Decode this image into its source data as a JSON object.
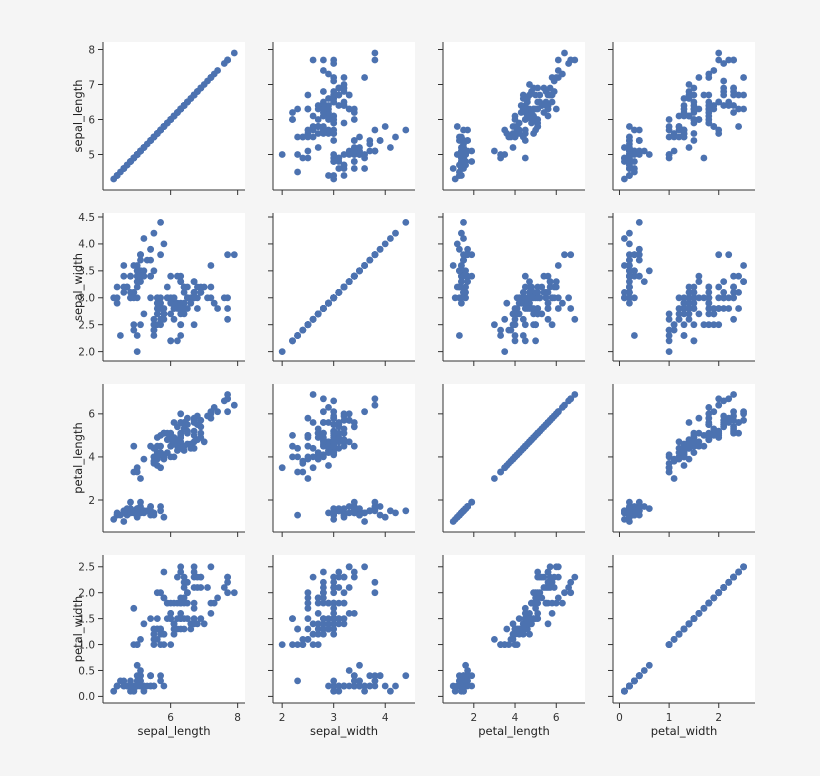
{
  "chart_data": {
    "type": "scatter",
    "variables": [
      "sepal_length",
      "sepal_width",
      "petal_length",
      "petal_width"
    ],
    "grid": false,
    "diagonal": "scatter",
    "colors": {
      "points": "#4c72b0",
      "axis": "#333333",
      "panel_bg": "#ffffff",
      "page_bg": "#f5f5f5"
    },
    "axes": {
      "sepal_length": {
        "label": "sepal_length",
        "range": [
          4.1,
          8.1
        ],
        "ticks": [
          5,
          6,
          7,
          8
        ],
        "x_ticks": [
          6,
          8
        ],
        "y_ticks": [
          5,
          6,
          7,
          8
        ]
      },
      "sepal_width": {
        "label": "sepal_width",
        "range": [
          1.9,
          4.5
        ],
        "ticks": [
          2.0,
          2.5,
          3.0,
          3.5,
          4.0,
          4.5
        ],
        "x_ticks": [
          2,
          3,
          4
        ],
        "y_ticks": [
          2.0,
          2.5,
          3.0,
          3.5,
          4.0,
          4.5
        ]
      },
      "petal_length": {
        "label": "petal_length",
        "range": [
          0.7,
          7.2
        ],
        "ticks": [
          2,
          4,
          6
        ],
        "x_ticks": [
          2,
          4,
          6
        ],
        "y_ticks": [
          2,
          4,
          6
        ]
      },
      "petal_width": {
        "label": "petal_width",
        "range": [
          -0.05,
          2.65
        ],
        "ticks": [
          0.0,
          0.5,
          1.0,
          1.5,
          2.0,
          2.5
        ],
        "x_ticks": [
          0,
          1,
          2
        ],
        "y_ticks": [
          0.0,
          0.5,
          1.0,
          1.5,
          2.0,
          2.5
        ]
      }
    },
    "columns": [
      "sepal_length",
      "sepal_width",
      "petal_length",
      "petal_width"
    ],
    "rows": [
      [
        5.1,
        3.5,
        1.4,
        0.2
      ],
      [
        4.9,
        3.0,
        1.4,
        0.2
      ],
      [
        4.7,
        3.2,
        1.3,
        0.2
      ],
      [
        4.6,
        3.1,
        1.5,
        0.2
      ],
      [
        5.0,
        3.6,
        1.4,
        0.2
      ],
      [
        5.4,
        3.9,
        1.7,
        0.4
      ],
      [
        4.6,
        3.4,
        1.4,
        0.3
      ],
      [
        5.0,
        3.4,
        1.5,
        0.2
      ],
      [
        4.4,
        2.9,
        1.4,
        0.2
      ],
      [
        4.9,
        3.1,
        1.5,
        0.1
      ],
      [
        5.4,
        3.7,
        1.5,
        0.2
      ],
      [
        4.8,
        3.4,
        1.6,
        0.2
      ],
      [
        4.8,
        3.0,
        1.4,
        0.1
      ],
      [
        4.3,
        3.0,
        1.1,
        0.1
      ],
      [
        5.8,
        4.0,
        1.2,
        0.2
      ],
      [
        5.7,
        4.4,
        1.5,
        0.4
      ],
      [
        5.4,
        3.9,
        1.3,
        0.4
      ],
      [
        5.1,
        3.5,
        1.4,
        0.3
      ],
      [
        5.7,
        3.8,
        1.7,
        0.3
      ],
      [
        5.1,
        3.8,
        1.5,
        0.3
      ],
      [
        5.4,
        3.4,
        1.7,
        0.2
      ],
      [
        5.1,
        3.7,
        1.5,
        0.4
      ],
      [
        4.6,
        3.6,
        1.0,
        0.2
      ],
      [
        5.1,
        3.3,
        1.7,
        0.5
      ],
      [
        4.8,
        3.4,
        1.9,
        0.2
      ],
      [
        5.0,
        3.0,
        1.6,
        0.2
      ],
      [
        5.0,
        3.4,
        1.6,
        0.4
      ],
      [
        5.2,
        3.5,
        1.5,
        0.2
      ],
      [
        5.2,
        3.4,
        1.4,
        0.2
      ],
      [
        4.7,
        3.2,
        1.6,
        0.2
      ],
      [
        4.8,
        3.1,
        1.6,
        0.2
      ],
      [
        5.4,
        3.4,
        1.5,
        0.4
      ],
      [
        5.2,
        4.1,
        1.5,
        0.1
      ],
      [
        5.5,
        4.2,
        1.4,
        0.2
      ],
      [
        4.9,
        3.1,
        1.5,
        0.2
      ],
      [
        5.0,
        3.2,
        1.2,
        0.2
      ],
      [
        5.5,
        3.5,
        1.3,
        0.2
      ],
      [
        4.9,
        3.6,
        1.4,
        0.1
      ],
      [
        4.4,
        3.0,
        1.3,
        0.2
      ],
      [
        5.1,
        3.4,
        1.5,
        0.2
      ],
      [
        5.0,
        3.5,
        1.3,
        0.3
      ],
      [
        4.5,
        2.3,
        1.3,
        0.3
      ],
      [
        4.4,
        3.2,
        1.3,
        0.2
      ],
      [
        5.0,
        3.5,
        1.6,
        0.6
      ],
      [
        5.1,
        3.8,
        1.9,
        0.4
      ],
      [
        4.8,
        3.0,
        1.4,
        0.3
      ],
      [
        5.1,
        3.8,
        1.6,
        0.2
      ],
      [
        4.6,
        3.2,
        1.4,
        0.2
      ],
      [
        5.3,
        3.7,
        1.5,
        0.2
      ],
      [
        5.0,
        3.3,
        1.4,
        0.2
      ],
      [
        7.0,
        3.2,
        4.7,
        1.4
      ],
      [
        6.4,
        3.2,
        4.5,
        1.5
      ],
      [
        6.9,
        3.1,
        4.9,
        1.5
      ],
      [
        5.5,
        2.3,
        4.0,
        1.3
      ],
      [
        6.5,
        2.8,
        4.6,
        1.5
      ],
      [
        5.7,
        2.8,
        4.5,
        1.3
      ],
      [
        6.3,
        3.3,
        4.7,
        1.6
      ],
      [
        4.9,
        2.4,
        3.3,
        1.0
      ],
      [
        6.6,
        2.9,
        4.6,
        1.3
      ],
      [
        5.2,
        2.7,
        3.9,
        1.4
      ],
      [
        5.0,
        2.0,
        3.5,
        1.0
      ],
      [
        5.9,
        3.0,
        4.2,
        1.5
      ],
      [
        6.0,
        2.2,
        4.0,
        1.0
      ],
      [
        6.1,
        2.9,
        4.7,
        1.4
      ],
      [
        5.6,
        2.9,
        3.6,
        1.3
      ],
      [
        6.7,
        3.1,
        4.4,
        1.4
      ],
      [
        5.6,
        3.0,
        4.5,
        1.5
      ],
      [
        5.8,
        2.7,
        4.1,
        1.0
      ],
      [
        6.2,
        2.2,
        4.5,
        1.5
      ],
      [
        5.6,
        2.5,
        3.9,
        1.1
      ],
      [
        5.9,
        3.2,
        4.8,
        1.8
      ],
      [
        6.1,
        2.8,
        4.0,
        1.3
      ],
      [
        6.3,
        2.5,
        4.9,
        1.5
      ],
      [
        6.1,
        2.8,
        4.7,
        1.2
      ],
      [
        6.4,
        2.9,
        4.3,
        1.3
      ],
      [
        6.6,
        3.0,
        4.4,
        1.4
      ],
      [
        6.8,
        2.8,
        4.8,
        1.4
      ],
      [
        6.7,
        3.0,
        5.0,
        1.7
      ],
      [
        6.0,
        2.9,
        4.5,
        1.5
      ],
      [
        5.7,
        2.6,
        3.5,
        1.0
      ],
      [
        5.5,
        2.4,
        3.8,
        1.1
      ],
      [
        5.5,
        2.4,
        3.7,
        1.0
      ],
      [
        5.8,
        2.7,
        3.9,
        1.2
      ],
      [
        6.0,
        2.7,
        5.1,
        1.6
      ],
      [
        5.4,
        3.0,
        4.5,
        1.5
      ],
      [
        6.0,
        3.4,
        4.5,
        1.6
      ],
      [
        6.7,
        3.1,
        4.7,
        1.5
      ],
      [
        6.3,
        2.3,
        4.4,
        1.3
      ],
      [
        5.6,
        3.0,
        4.1,
        1.3
      ],
      [
        5.5,
        2.5,
        4.0,
        1.3
      ],
      [
        5.5,
        2.6,
        4.4,
        1.2
      ],
      [
        6.1,
        3.0,
        4.6,
        1.4
      ],
      [
        5.8,
        2.6,
        4.0,
        1.2
      ],
      [
        5.0,
        2.3,
        3.3,
        1.0
      ],
      [
        5.6,
        2.7,
        4.2,
        1.3
      ],
      [
        5.7,
        3.0,
        4.2,
        1.2
      ],
      [
        5.7,
        2.9,
        4.2,
        1.3
      ],
      [
        6.2,
        2.9,
        4.3,
        1.3
      ],
      [
        5.1,
        2.5,
        3.0,
        1.1
      ],
      [
        5.7,
        2.8,
        4.1,
        1.3
      ],
      [
        6.3,
        3.3,
        6.0,
        2.5
      ],
      [
        5.8,
        2.7,
        5.1,
        1.9
      ],
      [
        7.1,
        3.0,
        5.9,
        2.1
      ],
      [
        6.3,
        2.9,
        5.6,
        1.8
      ],
      [
        6.5,
        3.0,
        5.8,
        2.2
      ],
      [
        7.6,
        3.0,
        6.6,
        2.1
      ],
      [
        4.9,
        2.5,
        4.5,
        1.7
      ],
      [
        7.3,
        2.9,
        6.3,
        1.8
      ],
      [
        6.7,
        2.5,
        5.8,
        1.8
      ],
      [
        7.2,
        3.6,
        6.1,
        2.5
      ],
      [
        6.5,
        3.2,
        5.1,
        2.0
      ],
      [
        6.4,
        2.7,
        5.3,
        1.9
      ],
      [
        6.8,
        3.0,
        5.5,
        2.1
      ],
      [
        5.7,
        2.5,
        5.0,
        2.0
      ],
      [
        5.8,
        2.8,
        5.1,
        2.4
      ],
      [
        6.4,
        3.2,
        5.3,
        2.3
      ],
      [
        6.5,
        3.0,
        5.5,
        1.8
      ],
      [
        7.7,
        3.8,
        6.7,
        2.2
      ],
      [
        7.7,
        2.6,
        6.9,
        2.3
      ],
      [
        6.0,
        2.2,
        5.0,
        1.5
      ],
      [
        6.9,
        3.2,
        5.7,
        2.3
      ],
      [
        5.6,
        2.8,
        4.9,
        2.0
      ],
      [
        7.7,
        2.8,
        6.7,
        2.0
      ],
      [
        6.3,
        2.7,
        4.9,
        1.8
      ],
      [
        6.7,
        3.3,
        5.7,
        2.1
      ],
      [
        7.2,
        3.2,
        6.0,
        1.8
      ],
      [
        6.2,
        2.8,
        4.8,
        1.8
      ],
      [
        6.1,
        3.0,
        4.9,
        1.8
      ],
      [
        6.4,
        2.8,
        5.6,
        2.1
      ],
      [
        7.2,
        3.0,
        5.8,
        1.6
      ],
      [
        7.4,
        2.8,
        6.1,
        1.9
      ],
      [
        7.9,
        3.8,
        6.4,
        2.0
      ],
      [
        6.4,
        2.8,
        5.6,
        2.2
      ],
      [
        6.3,
        2.8,
        5.1,
        1.5
      ],
      [
        6.1,
        2.6,
        5.6,
        1.4
      ],
      [
        7.7,
        3.0,
        6.1,
        2.3
      ],
      [
        6.3,
        3.4,
        5.6,
        2.4
      ],
      [
        6.4,
        3.1,
        5.5,
        1.8
      ],
      [
        6.0,
        3.0,
        4.8,
        1.8
      ],
      [
        6.9,
        3.1,
        5.4,
        2.1
      ],
      [
        6.7,
        3.1,
        5.6,
        2.4
      ],
      [
        6.9,
        3.1,
        5.1,
        2.3
      ],
      [
        5.8,
        2.7,
        5.1,
        1.9
      ],
      [
        6.8,
        3.2,
        5.9,
        2.3
      ],
      [
        6.7,
        3.3,
        5.7,
        2.5
      ],
      [
        6.7,
        3.0,
        5.2,
        2.3
      ],
      [
        6.3,
        2.5,
        5.0,
        1.9
      ],
      [
        6.5,
        3.0,
        5.2,
        2.0
      ],
      [
        6.2,
        3.4,
        5.4,
        2.3
      ],
      [
        5.9,
        3.0,
        5.1,
        1.8
      ]
    ]
  }
}
